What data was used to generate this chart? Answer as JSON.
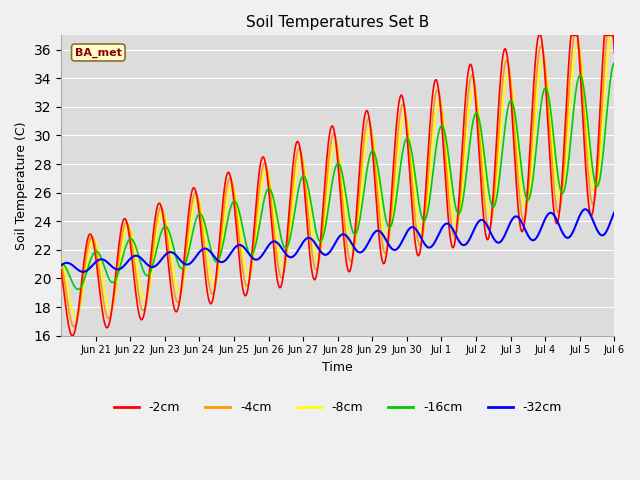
{
  "title": "Soil Temperatures Set B",
  "xlabel": "Time",
  "ylabel": "Soil Temperature (C)",
  "ylim": [
    16,
    37
  ],
  "yticks": [
    16,
    18,
    20,
    22,
    24,
    26,
    28,
    30,
    32,
    34,
    36
  ],
  "annotation": "BA_met",
  "colors": {
    "-2cm": "#ff0000",
    "-4cm": "#ff9900",
    "-8cm": "#ffff00",
    "-16cm": "#00cc00",
    "-32cm": "#0000ff"
  },
  "bg_color": "#dcdcdc",
  "fig_bg_color": "#f0f0f0",
  "xlim": [
    0,
    16
  ],
  "tick_positions": [
    1,
    2,
    3,
    4,
    5,
    6,
    7,
    8,
    9,
    10,
    11,
    12,
    13,
    14,
    15,
    16
  ],
  "tick_labels": [
    "Jun 21",
    "Jun 22",
    "Jun 23",
    "Jun 24",
    "Jun 25",
    "Jun 26",
    "Jun 27",
    "Jun 28",
    "Jun 29",
    "Jun 30",
    "Jul 1",
    "Jul 2",
    "Jul 3",
    "Jul 4",
    "Jul 5",
    "Jul 6"
  ]
}
